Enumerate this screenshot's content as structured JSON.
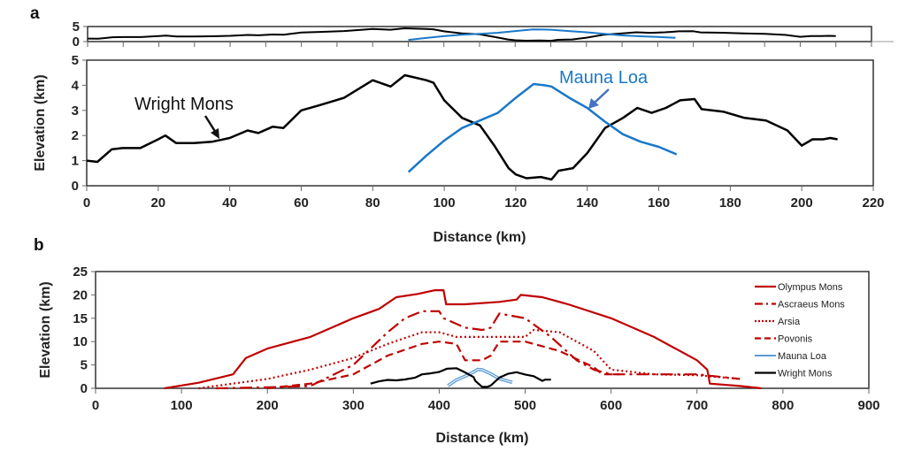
{
  "panel_labels": {
    "a": "a",
    "b": "b"
  },
  "colors": {
    "wright": "#000000",
    "mauna": "#1a78c8",
    "mauna_arrow": "#4472c4",
    "mars": "#c00000",
    "mauna_b": "#5b9bd5"
  },
  "chart_data": [
    {
      "id": "a-overview",
      "type": "line",
      "xlim": [
        0,
        220
      ],
      "ylim": [
        0,
        5
      ],
      "yticks": [
        "0",
        "5"
      ],
      "grid": false,
      "note_shares_series_with": "a"
    },
    {
      "id": "a",
      "type": "line",
      "xlabel": "Distance (km)",
      "ylabel": "Elevation (km)",
      "xlim": [
        0,
        220
      ],
      "ylim": [
        0,
        5
      ],
      "xticks": [
        "0",
        "20",
        "40",
        "60",
        "80",
        "100",
        "120",
        "140",
        "160",
        "180",
        "200",
        "220"
      ],
      "yticks": [
        "0",
        "1",
        "2",
        "3",
        "4",
        "5"
      ],
      "grid": false,
      "annotations": [
        {
          "text": "Wright Mons",
          "points_to": [
            38,
            1.8
          ]
        },
        {
          "text": "Mauna Loa",
          "points_to": [
            140,
            3.0
          ]
        }
      ],
      "series": [
        {
          "name": "Wright Mons",
          "style": "solid",
          "color": "#000000",
          "x": [
            0,
            3,
            7,
            10,
            15,
            20,
            22,
            25,
            30,
            35,
            40,
            45,
            48,
            52,
            55,
            60,
            65,
            72,
            80,
            85,
            89,
            95,
            97,
            100,
            105,
            110,
            114,
            118,
            120,
            123,
            127,
            130,
            132,
            136,
            140,
            145,
            150,
            154,
            158,
            162,
            166,
            170,
            172,
            178,
            184,
            190,
            196,
            200,
            203,
            206,
            208,
            210
          ],
          "y": [
            1.0,
            0.95,
            1.45,
            1.5,
            1.5,
            1.85,
            2.0,
            1.7,
            1.7,
            1.75,
            1.9,
            2.2,
            2.1,
            2.35,
            2.3,
            3.0,
            3.2,
            3.5,
            4.2,
            3.95,
            4.4,
            4.2,
            4.1,
            3.4,
            2.7,
            2.4,
            1.6,
            0.7,
            0.45,
            0.3,
            0.35,
            0.25,
            0.6,
            0.7,
            1.3,
            2.3,
            2.7,
            3.1,
            2.9,
            3.1,
            3.4,
            3.45,
            3.05,
            2.95,
            2.7,
            2.6,
            2.2,
            1.6,
            1.85,
            1.85,
            1.9,
            1.85
          ]
        },
        {
          "name": "Mauna Loa",
          "style": "solid",
          "color": "#1a78c8",
          "x": [
            90,
            95,
            100,
            105,
            110,
            115,
            120,
            125,
            128,
            130,
            135,
            140,
            145,
            150,
            155,
            160,
            165
          ],
          "y": [
            0.55,
            1.2,
            1.8,
            2.3,
            2.6,
            2.9,
            3.5,
            4.05,
            4.0,
            3.95,
            3.5,
            3.1,
            2.55,
            2.05,
            1.75,
            1.55,
            1.25
          ]
        }
      ]
    },
    {
      "id": "b",
      "type": "line",
      "xlabel": "Distance (km)",
      "ylabel": "Elevation (km)",
      "xlim": [
        0,
        900
      ],
      "ylim": [
        0,
        25
      ],
      "xticks": [
        "0",
        "100",
        "200",
        "300",
        "400",
        "500",
        "600",
        "700",
        "800",
        "900"
      ],
      "yticks": [
        "0",
        "5",
        "10",
        "15",
        "20",
        "25"
      ],
      "grid": false,
      "legend": "top-right",
      "series": [
        {
          "name": "Olympus Mons",
          "style": "solid",
          "color": "#c00000",
          "x": [
            80,
            120,
            160,
            175,
            200,
            250,
            300,
            330,
            350,
            375,
            395,
            405,
            408,
            430,
            470,
            490,
            495,
            520,
            550,
            600,
            650,
            700,
            712,
            715,
            750,
            775
          ],
          "y": [
            0,
            1.2,
            3,
            6.5,
            8.5,
            11,
            15,
            17,
            19.5,
            20.2,
            21,
            21,
            18,
            18,
            18.5,
            19,
            20,
            19.5,
            18,
            15,
            11,
            6,
            4,
            1,
            0.5,
            0
          ]
        },
        {
          "name": "Ascraeus Mons",
          "style": "dashdot",
          "color": "#c00000",
          "x": [
            140,
            200,
            250,
            300,
            340,
            360,
            380,
            400,
            405,
            430,
            450,
            460,
            470,
            500,
            530,
            560,
            580,
            600,
            650,
            700,
            750
          ],
          "y": [
            0,
            0.2,
            0.5,
            5,
            12,
            15,
            16.5,
            16.5,
            15,
            13,
            12.5,
            13,
            16,
            15,
            11,
            6,
            4,
            3,
            3,
            3,
            2
          ]
        },
        {
          "name": "Arsia",
          "style": "dotted",
          "color": "#c00000",
          "x": [
            120,
            200,
            250,
            300,
            340,
            380,
            400,
            420,
            500,
            510,
            540,
            580,
            600,
            650,
            700,
            750
          ],
          "y": [
            0,
            2,
            4,
            6.5,
            9.5,
            12,
            12,
            11,
            11,
            12.5,
            12,
            8,
            4,
            3,
            2.8,
            2
          ]
        },
        {
          "name": "Povonis",
          "style": "dashed",
          "color": "#c00000",
          "x": [
            200,
            250,
            300,
            340,
            380,
            400,
            420,
            430,
            450,
            460,
            470,
            500,
            540,
            580,
            590,
            610
          ],
          "y": [
            0,
            1,
            3,
            7,
            9.5,
            10,
            9.5,
            6,
            6,
            7,
            10,
            10,
            8,
            4.5,
            3,
            3
          ]
        },
        {
          "name": "Mauna Loa",
          "style": "double",
          "color": "#5b9bd5",
          "x": [
            410,
            420,
            430,
            440,
            445,
            450,
            460,
            470,
            485
          ],
          "y": [
            0.55,
            1.8,
            2.6,
            3.5,
            4.05,
            3.95,
            3.1,
            2.05,
            1.25
          ]
        },
        {
          "name": "Wright Mons",
          "style": "solid",
          "color": "#000000",
          "x": [
            320,
            330,
            340,
            350,
            360,
            372,
            380,
            390,
            400,
            409,
            420,
            430,
            440,
            442,
            450,
            456,
            460,
            470,
            480,
            490,
            500,
            510,
            520,
            523,
            530
          ],
          "y": [
            1.0,
            1.5,
            1.8,
            1.7,
            1.9,
            2.3,
            3.0,
            3.2,
            3.5,
            4.2,
            4.3,
            3.4,
            2.4,
            1.6,
            0.3,
            0.3,
            0.6,
            2.3,
            3.1,
            3.45,
            2.95,
            2.6,
            1.6,
            1.85,
            1.85
          ]
        }
      ]
    }
  ]
}
